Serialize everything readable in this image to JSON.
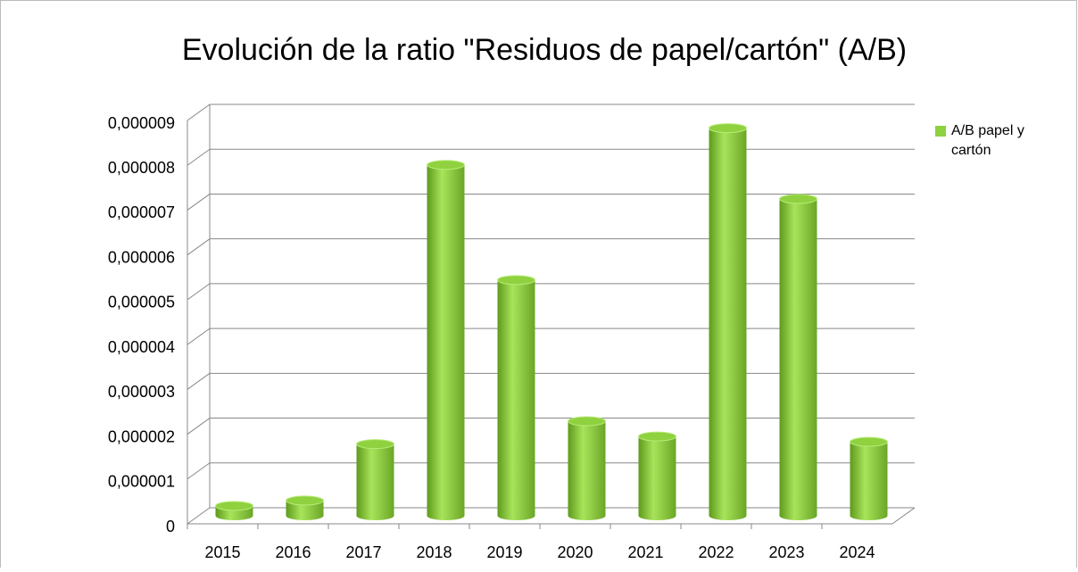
{
  "chart_data": {
    "type": "bar",
    "title": "Evolución de la ratio \"Residuos de papel/cartón\" (A/B)",
    "categories": [
      "2015",
      "2016",
      "2017",
      "2018",
      "2019",
      "2020",
      "2021",
      "2022",
      "2023",
      "2024"
    ],
    "series": [
      {
        "name": "A/B papel y cartón",
        "color": "#8fd13f",
        "values": [
          2.2e-07,
          3.4e-07,
          1.6e-06,
          7.83e-06,
          5.26e-06,
          2.11e-06,
          1.77e-06,
          8.65e-06,
          7.07e-06,
          1.65e-06
        ]
      }
    ],
    "ylim": [
      0,
      9e-06
    ],
    "yticks": [
      0,
      {
        "value": 1e-06,
        "label": "0,000001"
      },
      {
        "value": 2e-06,
        "label": "0,000002"
      },
      {
        "value": 3e-06,
        "label": "0,000003"
      },
      {
        "value": 4e-06,
        "label": "0,000004"
      },
      {
        "value": 5e-06,
        "label": "0,000005"
      },
      {
        "value": 6e-06,
        "label": "0,000006"
      },
      {
        "value": 7e-06,
        "label": "0,000007"
      },
      {
        "value": 8e-06,
        "label": "0,000008"
      },
      {
        "value": 9e-06,
        "label": "0,000009"
      }
    ],
    "grid": true,
    "legend": "right"
  }
}
